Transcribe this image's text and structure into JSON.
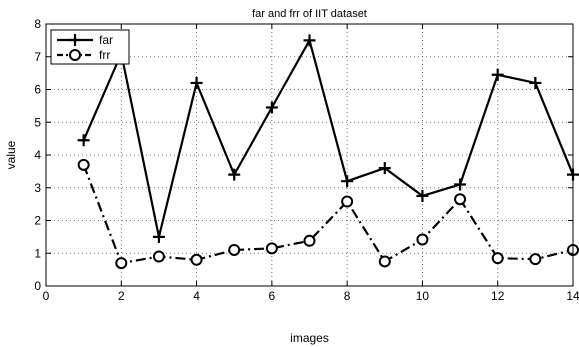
{
  "chart_data": {
    "type": "line",
    "title": "far and frr of IIT dataset",
    "xlabel": "images",
    "ylabel": "value",
    "xlim": [
      0,
      14
    ],
    "ylim": [
      0,
      8
    ],
    "xticks": [
      0,
      2,
      4,
      6,
      8,
      10,
      12,
      14
    ],
    "yticks": [
      0,
      1,
      2,
      3,
      4,
      5,
      6,
      7,
      8
    ],
    "grid": true,
    "legend_position": "top-left",
    "series": [
      {
        "name": "far",
        "color": "#000000",
        "line_style": "solid",
        "marker": "plus",
        "x": [
          1,
          2,
          3,
          4,
          5,
          6,
          7,
          8,
          9,
          10,
          11,
          12,
          13,
          14
        ],
        "y": [
          4.45,
          7.1,
          1.5,
          6.2,
          3.4,
          5.45,
          7.5,
          3.2,
          3.6,
          2.75,
          3.1,
          6.45,
          6.2,
          3.4
        ]
      },
      {
        "name": "frr",
        "color": "#000000",
        "line_style": "dashdot",
        "marker": "circle",
        "x": [
          1,
          2,
          3,
          4,
          5,
          6,
          7,
          8,
          9,
          10,
          11,
          12,
          13,
          14
        ],
        "y": [
          3.7,
          0.7,
          0.9,
          0.8,
          1.1,
          1.15,
          1.38,
          2.58,
          0.75,
          1.42,
          2.65,
          0.85,
          0.82,
          1.1
        ]
      }
    ]
  }
}
